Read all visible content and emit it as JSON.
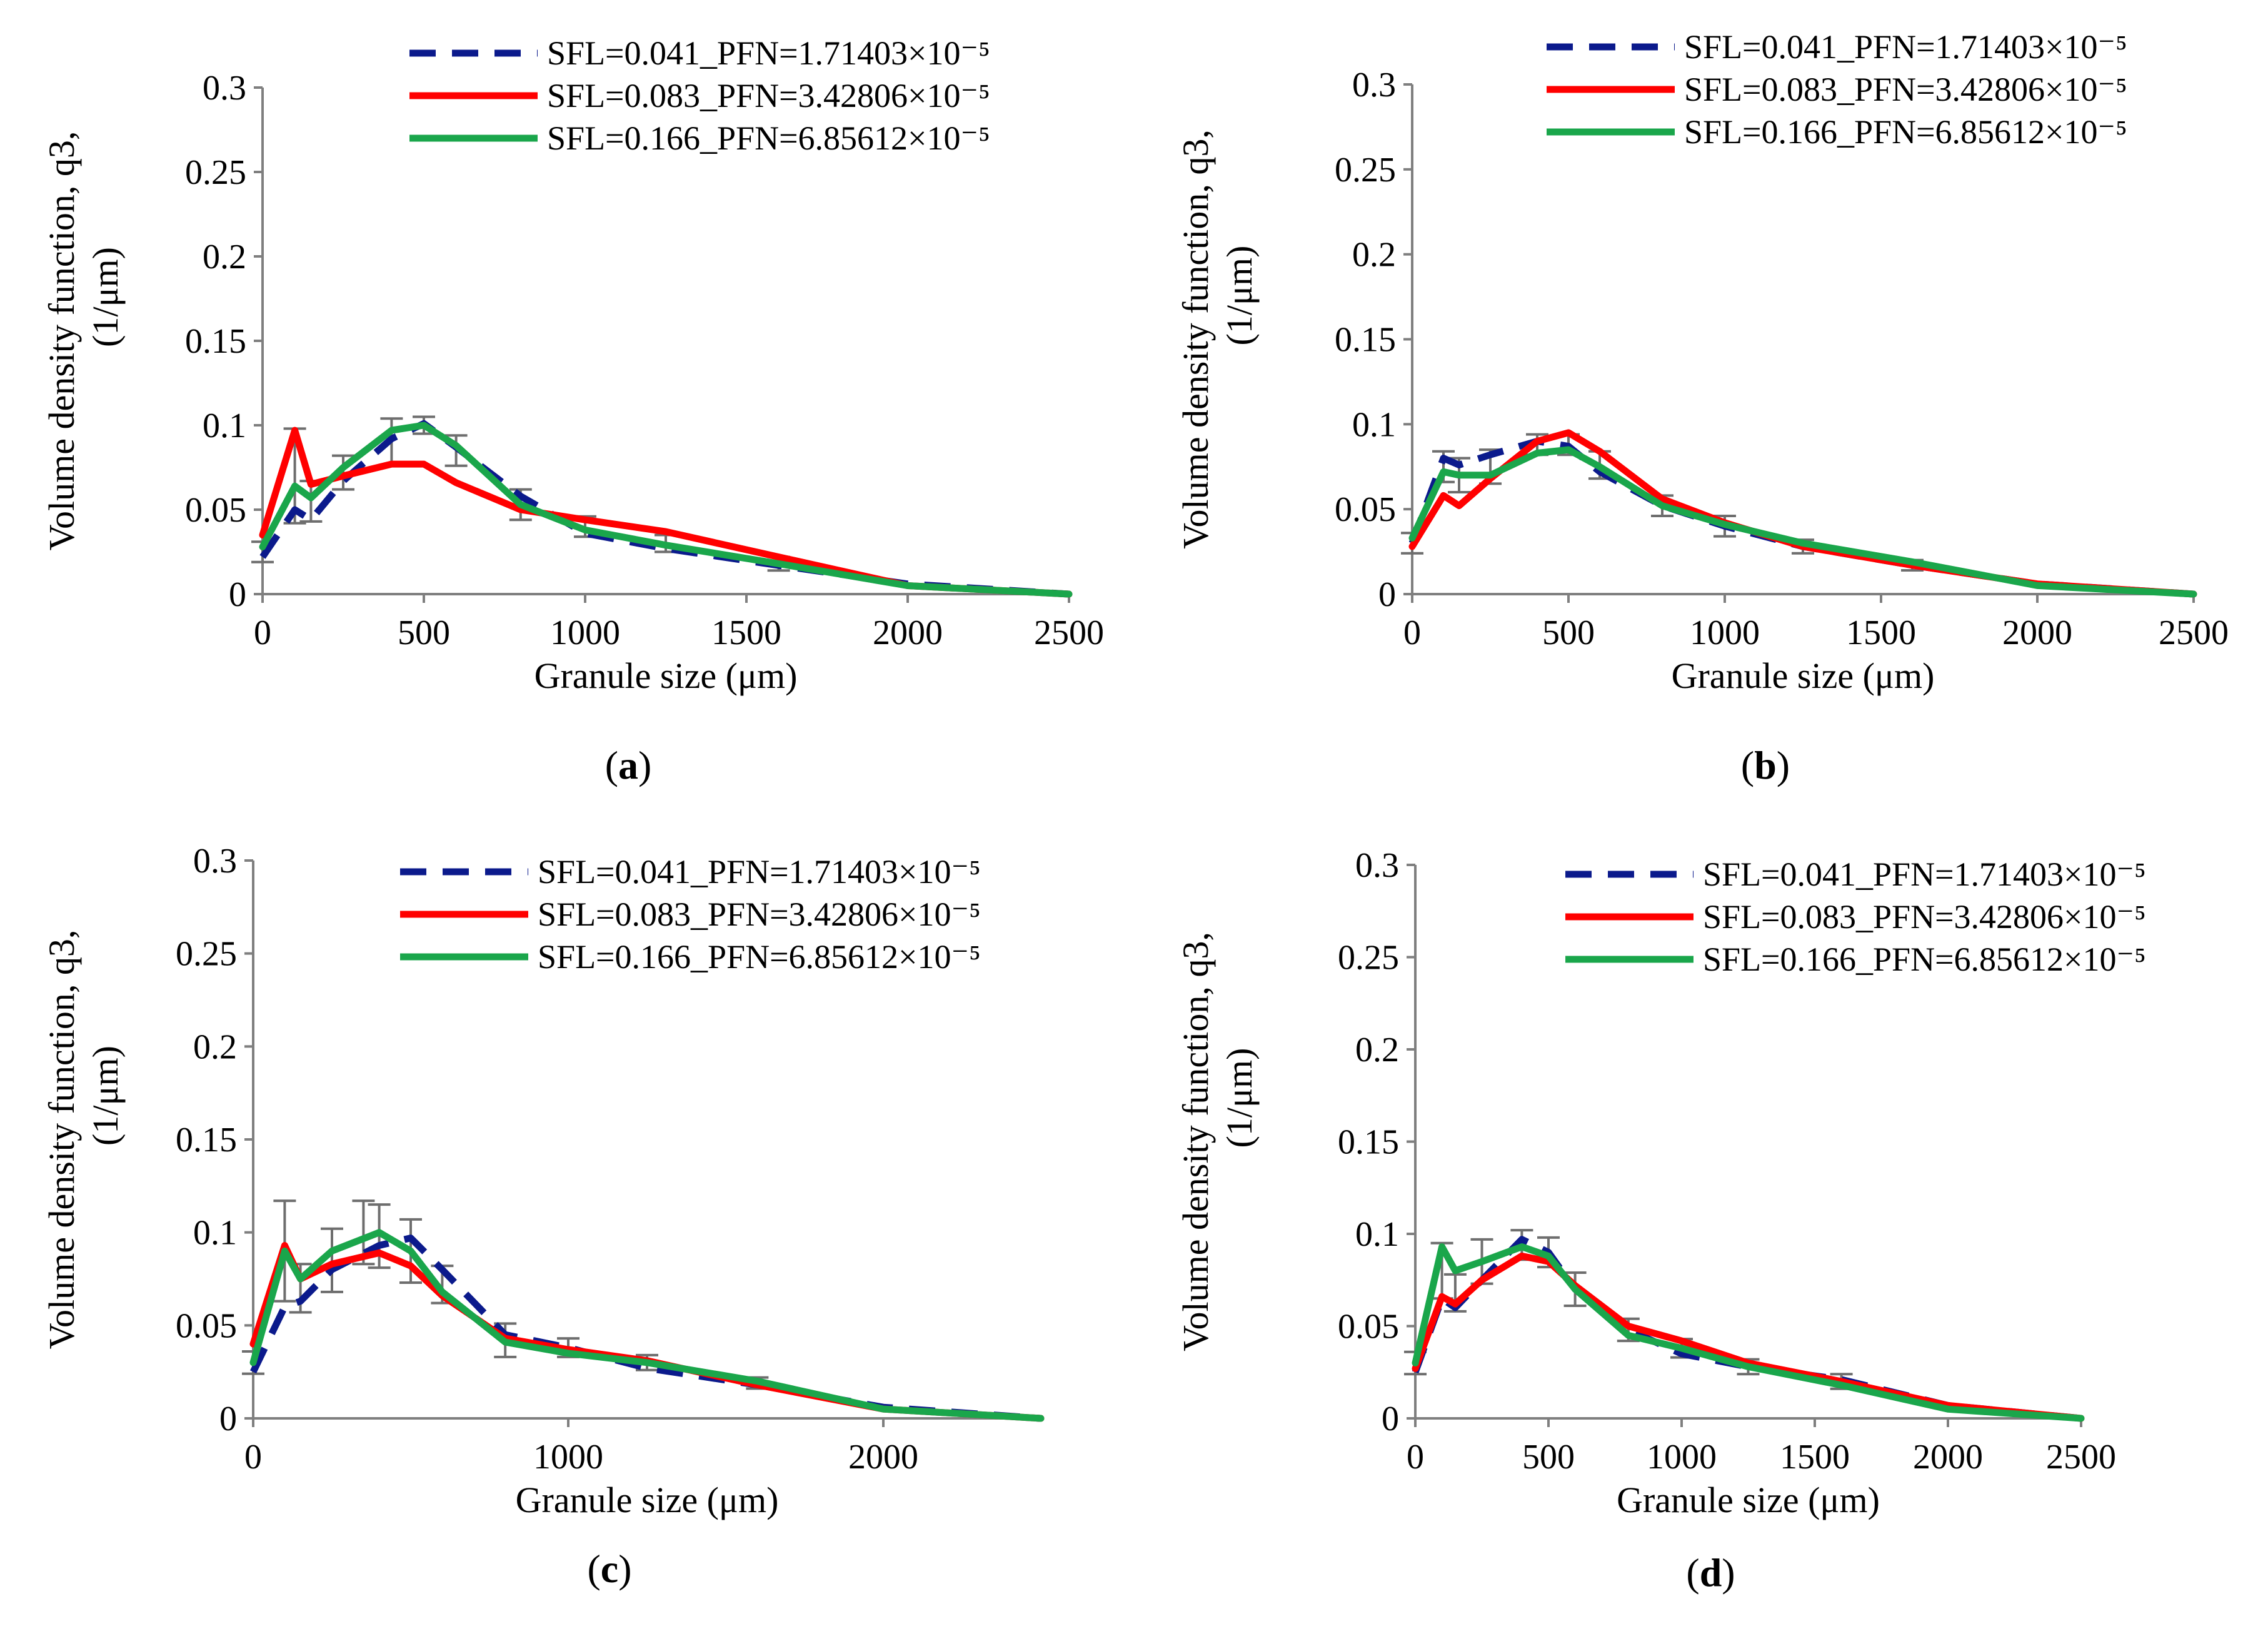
{
  "colors": {
    "series_1": "#0b1a8c",
    "series_2": "#ff0000",
    "series_3": "#1aa64b",
    "axis": "#7f7f7f",
    "error_bar": "#6e6e6e"
  },
  "chart_data": [
    {
      "type": "line",
      "id": "a",
      "caption_open": "(",
      "caption_letter": "a",
      "caption_close": ")",
      "xlabel": "Granule size (μm)",
      "ylabel_line1": "Volume density function, q3,",
      "ylabel_line2": "(1/μm)",
      "xlim": [
        0,
        2500
      ],
      "ylim": [
        0,
        0.3
      ],
      "xticks": [
        0,
        500,
        1000,
        1500,
        2000,
        2500
      ],
      "xtick_labels": [
        "0",
        "500",
        "1000",
        "1500",
        "2000",
        "2500"
      ],
      "yticks": [
        0,
        0.05,
        0.1,
        0.15,
        0.2,
        0.25,
        0.3
      ],
      "ytick_labels": [
        "0",
        "0.05",
        "0.1",
        "0.15",
        "0.2",
        "0.25",
        "0.3"
      ],
      "legend_position": "top-right",
      "series": [
        {
          "name": "SFL=0.041_PFN=1.71403×10⁻⁵",
          "style": "dashed",
          "x": [
            0,
            100,
            150,
            250,
            400,
            500,
            600,
            800,
            1000,
            1250,
            1600,
            2000,
            2500
          ],
          "y": [
            0.022,
            0.05,
            0.044,
            0.067,
            0.092,
            0.101,
            0.087,
            0.058,
            0.036,
            0.027,
            0.017,
            0.006,
            0.0
          ]
        },
        {
          "name": "SFL=0.083_PFN=3.42806×10⁻⁵",
          "style": "solid",
          "x": [
            0,
            100,
            150,
            250,
            400,
            500,
            600,
            800,
            1000,
            1250,
            1600,
            2000,
            2500
          ],
          "y": [
            0.035,
            0.097,
            0.065,
            0.07,
            0.077,
            0.077,
            0.066,
            0.05,
            0.044,
            0.037,
            0.022,
            0.005,
            0.0
          ]
        },
        {
          "name": "SFL=0.166_PFN=6.85612×10⁻⁵",
          "style": "solid",
          "x": [
            0,
            100,
            150,
            250,
            400,
            500,
            600,
            800,
            1000,
            1250,
            1600,
            2000,
            2500
          ],
          "y": [
            0.028,
            0.064,
            0.057,
            0.075,
            0.097,
            0.1,
            0.088,
            0.053,
            0.038,
            0.029,
            0.018,
            0.005,
            0.0
          ]
        }
      ],
      "error_bars": {
        "x": [
          0,
          100,
          150,
          250,
          400,
          500,
          600,
          800,
          1000,
          1250,
          1600
        ],
        "y": [
          0.025,
          0.07,
          0.055,
          0.072,
          0.09,
          0.1,
          0.085,
          0.053,
          0.04,
          0.03,
          0.018
        ],
        "err": [
          0.006,
          0.028,
          0.012,
          0.01,
          0.014,
          0.005,
          0.009,
          0.009,
          0.006,
          0.005,
          0.004
        ]
      }
    },
    {
      "type": "line",
      "id": "b",
      "caption_open": "(",
      "caption_letter": "b",
      "caption_close": ")",
      "xlabel": "Granule size (μm)",
      "ylabel_line1": "Volume density function, q3,",
      "ylabel_line2": "(1/μm)",
      "xlim": [
        0,
        2500
      ],
      "ylim": [
        0,
        0.3
      ],
      "xticks": [
        0,
        500,
        1000,
        1500,
        2000,
        2500
      ],
      "xtick_labels": [
        "0",
        "500",
        "1000",
        "1500",
        "2000",
        "2500"
      ],
      "yticks": [
        0,
        0.05,
        0.1,
        0.15,
        0.2,
        0.25,
        0.3
      ],
      "ytick_labels": [
        "0",
        "0.05",
        "0.1",
        "0.15",
        "0.2",
        "0.25",
        "0.3"
      ],
      "legend_position": "top-right",
      "series": [
        {
          "name": "SFL=0.041_PFN=1.71403×10⁻⁵",
          "style": "dashed",
          "x": [
            0,
            100,
            150,
            250,
            400,
            500,
            600,
            800,
            1000,
            1250,
            1600,
            2000,
            2500
          ],
          "y": [
            0.03,
            0.08,
            0.076,
            0.082,
            0.09,
            0.087,
            0.072,
            0.052,
            0.04,
            0.028,
            0.017,
            0.006,
            0.0
          ]
        },
        {
          "name": "SFL=0.083_PFN=3.42806×10⁻⁵",
          "style": "solid",
          "x": [
            0,
            100,
            150,
            250,
            400,
            500,
            600,
            800,
            1000,
            1250,
            1600,
            2000,
            2500
          ],
          "y": [
            0.028,
            0.058,
            0.052,
            0.068,
            0.09,
            0.095,
            0.084,
            0.056,
            0.042,
            0.028,
            0.017,
            0.006,
            0.0
          ]
        },
        {
          "name": "SFL=0.166_PFN=6.85612×10⁻⁵",
          "style": "solid",
          "x": [
            0,
            100,
            150,
            250,
            400,
            500,
            600,
            800,
            1000,
            1250,
            1600,
            2000,
            2500
          ],
          "y": [
            0.033,
            0.072,
            0.07,
            0.07,
            0.083,
            0.085,
            0.075,
            0.052,
            0.041,
            0.03,
            0.019,
            0.005,
            0.0
          ]
        }
      ],
      "error_bars": {
        "x": [
          0,
          100,
          150,
          250,
          400,
          500,
          600,
          800,
          1000,
          1250,
          1600
        ],
        "y": [
          0.03,
          0.075,
          0.07,
          0.075,
          0.088,
          0.088,
          0.076,
          0.052,
          0.04,
          0.028,
          0.017
        ],
        "err": [
          0.006,
          0.009,
          0.01,
          0.01,
          0.006,
          0.006,
          0.008,
          0.006,
          0.006,
          0.004,
          0.003
        ]
      }
    },
    {
      "type": "line",
      "id": "c",
      "caption_open": "(",
      "caption_letter": "c",
      "caption_close": ")",
      "xlabel": "Granule size (μm)",
      "ylabel_line1": "Volume density function, q3,",
      "ylabel_line2": "(1/μm)",
      "xlim": [
        0,
        2500
      ],
      "ylim": [
        0,
        0.3
      ],
      "xticks": [
        0,
        1000,
        2000
      ],
      "xtick_labels": [
        "0",
        "1000",
        "2000"
      ],
      "yticks": [
        0,
        0.05,
        0.1,
        0.15,
        0.2,
        0.25,
        0.3
      ],
      "ytick_labels": [
        "0",
        "0.05",
        "0.1",
        "0.15",
        "0.2",
        "0.25",
        "0.3"
      ],
      "legend_position": "top-right",
      "series": [
        {
          "name": "SFL=0.041_PFN=1.71403×10⁻⁵",
          "style": "dashed",
          "x": [
            0,
            100,
            150,
            250,
            400,
            500,
            600,
            800,
            1000,
            1250,
            1600,
            2000,
            2500
          ],
          "y": [
            0.025,
            0.06,
            0.063,
            0.08,
            0.093,
            0.097,
            0.08,
            0.045,
            0.038,
            0.027,
            0.018,
            0.006,
            0.0
          ]
        },
        {
          "name": "SFL=0.083_PFN=3.42806×10⁻⁵",
          "style": "solid",
          "x": [
            0,
            100,
            150,
            250,
            400,
            500,
            600,
            800,
            1000,
            1250,
            1600,
            2000,
            2500
          ],
          "y": [
            0.04,
            0.093,
            0.075,
            0.083,
            0.089,
            0.082,
            0.066,
            0.043,
            0.037,
            0.031,
            0.018,
            0.005,
            0.0
          ]
        },
        {
          "name": "SFL=0.166_PFN=6.85612×10⁻⁵",
          "style": "solid",
          "x": [
            0,
            100,
            150,
            250,
            400,
            500,
            600,
            800,
            1000,
            1250,
            1600,
            2000,
            2500
          ],
          "y": [
            0.03,
            0.09,
            0.075,
            0.09,
            0.1,
            0.09,
            0.068,
            0.041,
            0.035,
            0.03,
            0.02,
            0.005,
            0.0
          ]
        }
      ],
      "error_bars": {
        "x": [
          0,
          100,
          150,
          250,
          350,
          400,
          500,
          600,
          800,
          1000,
          1250,
          1600
        ],
        "y": [
          0.03,
          0.09,
          0.07,
          0.085,
          0.1,
          0.098,
          0.09,
          0.072,
          0.042,
          0.038,
          0.03,
          0.019
        ],
        "err": [
          0.006,
          0.027,
          0.013,
          0.017,
          0.017,
          0.017,
          0.017,
          0.01,
          0.009,
          0.005,
          0.004,
          0.003
        ]
      }
    },
    {
      "type": "line",
      "id": "d",
      "caption_open": "(",
      "caption_letter": "d",
      "caption_close": ")",
      "xlabel": "Granule size (μm)",
      "ylabel_line1": "Volume density function, q3,",
      "ylabel_line2": "(1/μm)",
      "xlim": [
        0,
        2500
      ],
      "ylim": [
        0,
        0.3
      ],
      "xticks": [
        0,
        500,
        1000,
        1500,
        2000,
        2500
      ],
      "xtick_labels": [
        "0",
        "500",
        "1000",
        "1500",
        "2000",
        "2500"
      ],
      "yticks": [
        0,
        0.05,
        0.1,
        0.15,
        0.2,
        0.25,
        0.3
      ],
      "ytick_labels": [
        "0",
        "0.05",
        "0.1",
        "0.15",
        "0.2",
        "0.25",
        "0.3"
      ],
      "legend_position": "top-right",
      "series": [
        {
          "name": "SFL=0.041_PFN=1.71403×10⁻⁵",
          "style": "dashed",
          "x": [
            0,
            100,
            150,
            250,
            400,
            500,
            600,
            800,
            1000,
            1250,
            1600,
            2000,
            2500
          ],
          "y": [
            0.025,
            0.065,
            0.06,
            0.075,
            0.097,
            0.09,
            0.07,
            0.048,
            0.035,
            0.028,
            0.021,
            0.007,
            0.0
          ]
        },
        {
          "name": "SFL=0.083_PFN=3.42806×10⁻⁵",
          "style": "solid",
          "x": [
            0,
            100,
            150,
            250,
            400,
            500,
            600,
            800,
            1000,
            1250,
            1600,
            2000,
            2500
          ],
          "y": [
            0.027,
            0.066,
            0.062,
            0.075,
            0.088,
            0.085,
            0.072,
            0.05,
            0.042,
            0.03,
            0.02,
            0.007,
            0.0
          ]
        },
        {
          "name": "SFL=0.166_PFN=6.85612×10⁻⁵",
          "style": "solid",
          "x": [
            0,
            100,
            150,
            250,
            400,
            500,
            600,
            800,
            1000,
            1250,
            1600,
            2000,
            2500
          ],
          "y": [
            0.03,
            0.093,
            0.08,
            0.085,
            0.093,
            0.088,
            0.07,
            0.045,
            0.038,
            0.028,
            0.018,
            0.005,
            0.0
          ]
        }
      ],
      "error_bars": {
        "x": [
          0,
          100,
          150,
          250,
          400,
          500,
          600,
          800,
          1000,
          1250,
          1600
        ],
        "y": [
          0.03,
          0.08,
          0.068,
          0.085,
          0.094,
          0.09,
          0.07,
          0.048,
          0.038,
          0.028,
          0.02
        ],
        "err": [
          0.006,
          0.015,
          0.01,
          0.012,
          0.008,
          0.008,
          0.009,
          0.006,
          0.005,
          0.004,
          0.004
        ]
      }
    }
  ]
}
